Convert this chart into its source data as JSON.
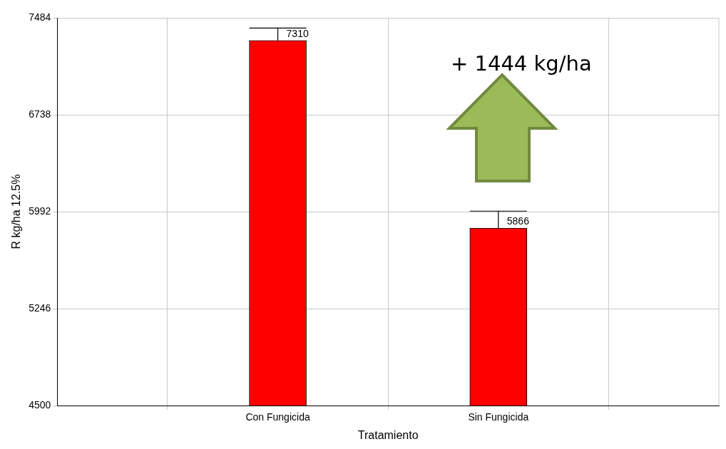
{
  "chart_data": {
    "type": "bar",
    "xlabel": "Tratamiento",
    "ylabel": "R kg/ha 12.5%",
    "categories": [
      "Con Fungicida",
      "Sin Fungicida"
    ],
    "values": [
      7310,
      5866
    ],
    "color": "#ff0000",
    "errors": [
      [
        7310,
        7405
      ],
      [
        5866,
        5996
      ]
    ],
    "data_labels": true,
    "ylim": [
      4500,
      7484
    ],
    "yticks": [
      4500,
      5246,
      5992,
      6738,
      7484
    ],
    "grid": true,
    "annotations": [
      "+ 1444 kg/ha"
    ]
  }
}
